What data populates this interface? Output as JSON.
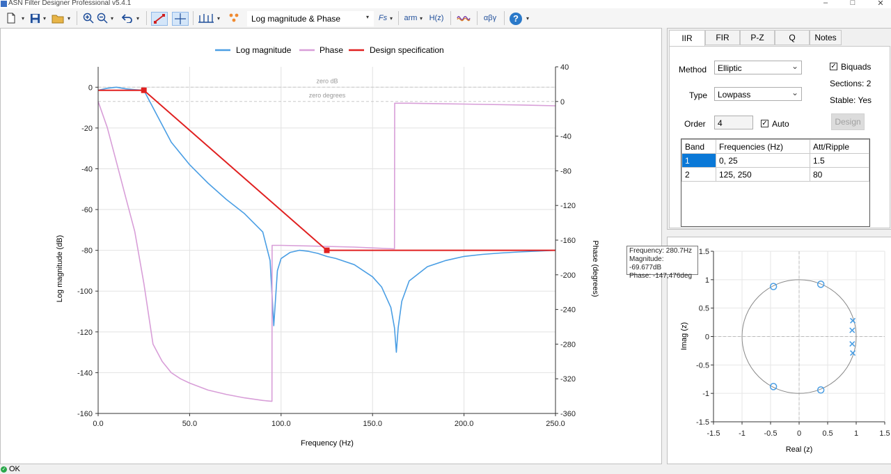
{
  "window": {
    "title": "ASN Filter Designer Professional v5.4.1"
  },
  "toolbar": {
    "view_select": "Log magnitude & Phase",
    "fs_label": "Fs",
    "arm_label": "arm",
    "hz_label": "H(z)",
    "greek_label": "αβγ",
    "help_label": "?"
  },
  "plot": {
    "legend": [
      "Log magnitude",
      "Phase",
      "Design specification"
    ],
    "colors": {
      "magnitude": "#4a9ee4",
      "phase": "#d89ed8",
      "spec": "#e02020"
    },
    "xlabel": "Frequency (Hz)",
    "ylabel_left": "Log magnitude (dB)",
    "ylabel_right": "Phase (degrees)",
    "ref_zero_db": "zero dB",
    "ref_zero_deg": "zero degrees",
    "x_ticks": [
      "0.0",
      "50.0",
      "100.0",
      "150.0",
      "200.0",
      "250.0"
    ],
    "y_left_ticks": [
      "0",
      "-20",
      "-40",
      "-60",
      "-80",
      "-100",
      "-120",
      "-140",
      "-160"
    ],
    "y_right_ticks": [
      "40",
      "0",
      "-40",
      "-80",
      "-120",
      "-160",
      "-200",
      "-240",
      "-280",
      "-320",
      "-360"
    ]
  },
  "chart_data": {
    "type": "line",
    "xlim": [
      0,
      250
    ],
    "ylim_left": [
      -160,
      10
    ],
    "ylim_right": [
      -360,
      40
    ],
    "series": [
      {
        "name": "Log magnitude",
        "axis": "left",
        "x": [
          0,
          5,
          10,
          15,
          20,
          25,
          30,
          40,
          50,
          60,
          70,
          80,
          90,
          94,
          96,
          98,
          100,
          105,
          110,
          115,
          120,
          125,
          130,
          140,
          150,
          155,
          160,
          162,
          163,
          164,
          166,
          170,
          180,
          190,
          200,
          210,
          220,
          230,
          240,
          250
        ],
        "y": [
          -1.5,
          -0.5,
          0,
          -0.8,
          -1.2,
          -1.5,
          -10,
          -27,
          -38,
          -47,
          -55,
          -62,
          -71,
          -85,
          -117,
          -90,
          -84,
          -81,
          -80,
          -80.5,
          -81.5,
          -83,
          -84,
          -87,
          -93,
          -98,
          -108,
          -118,
          -130,
          -118,
          -105,
          -95,
          -88,
          -85,
          -83,
          -82,
          -81.3,
          -80.8,
          -80.4,
          -80
        ]
      },
      {
        "name": "Phase",
        "axis": "right",
        "x": [
          0,
          5,
          10,
          15,
          20,
          25,
          30,
          35,
          40,
          45,
          50,
          60,
          70,
          80,
          90,
          95,
          95.1,
          100,
          120,
          140,
          150,
          162,
          162.1,
          170,
          200,
          230,
          250
        ],
        "y": [
          0,
          -30,
          -70,
          -110,
          -150,
          -210,
          -280,
          -300,
          -313,
          -320,
          -325,
          -333,
          -338,
          -342,
          -345,
          -346,
          -166,
          -166,
          -167,
          -168,
          -169,
          -170,
          -2,
          -2,
          -3,
          -4,
          -5
        ]
      },
      {
        "name": "Design specification",
        "axis": "left",
        "x": [
          0,
          25,
          125,
          250
        ],
        "y": [
          -1.5,
          -1.5,
          -80,
          -80
        ]
      }
    ]
  },
  "tabs": [
    "IIR",
    "FIR",
    "P-Z",
    "Q",
    "Notes"
  ],
  "iir": {
    "method_label": "Method",
    "method_value": "Elliptic",
    "type_label": "Type",
    "type_value": "Lowpass",
    "order_label": "Order",
    "order_value": "4",
    "auto_label": "Auto",
    "biquads_label": "Biquads",
    "sections": "Sections: 2",
    "stable": "Stable: Yes",
    "design_button": "Design",
    "band_headers": [
      "Band",
      "Frequencies (Hz)",
      "Att/Ripple"
    ],
    "bands": [
      [
        "1",
        "0, 25",
        "1.5"
      ],
      [
        "2",
        "125, 250",
        "80"
      ]
    ]
  },
  "tooltip": {
    "frequency": "Frequency: 280.7Hz",
    "magnitude": "Magnitude: -69.677dB",
    "phase": "Phase: -147,476deg"
  },
  "pz": {
    "xlabel": "Real (z)",
    "ylabel": "Imag (z)",
    "x_ticks": [
      "-1.5",
      "-1",
      "-0.5",
      "0",
      "0.5",
      "1",
      "1.5"
    ],
    "y_ticks": [
      "1.5",
      "1",
      "0.5",
      "0",
      "-0.5",
      "-1",
      "-1.5"
    ],
    "zeros": [
      [
        -0.45,
        0.88
      ],
      [
        0.38,
        0.92
      ],
      [
        -0.45,
        -0.88
      ],
      [
        0.38,
        -0.94
      ]
    ],
    "poles": [
      [
        0.94,
        0.28
      ],
      [
        0.93,
        0.11
      ],
      [
        0.93,
        -0.13
      ],
      [
        0.94,
        -0.29
      ]
    ]
  },
  "status": {
    "text": "OK"
  }
}
